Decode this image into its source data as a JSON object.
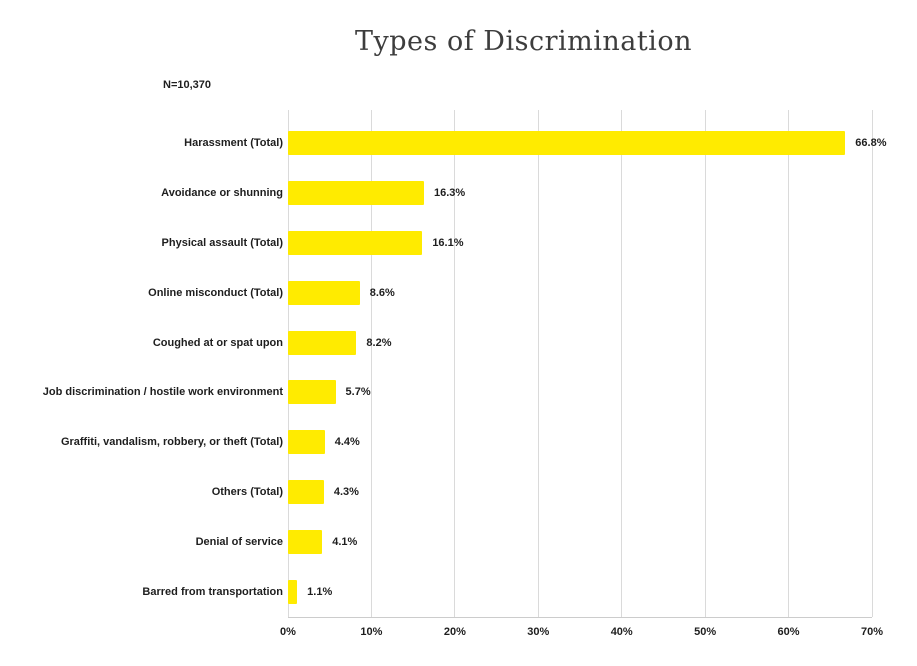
{
  "chart_data": {
    "type": "bar",
    "orientation": "horizontal",
    "title": "Types of Discrimination",
    "sample_size_label": "N=10,370",
    "categories": [
      "Harassment (Total)",
      "Avoidance or shunning",
      "Physical assault (Total)",
      "Online misconduct (Total)",
      "Coughed at or spat upon",
      "Job discrimination / hostile work environment",
      "Graffiti, vandalism, robbery, or theft (Total)",
      "Others (Total)",
      "Denial of service",
      "Barred from transportation"
    ],
    "values": [
      66.8,
      16.3,
      16.1,
      8.6,
      8.2,
      5.7,
      4.4,
      4.3,
      4.1,
      1.1
    ],
    "value_labels": [
      "66.8%",
      "16.3%",
      "16.1%",
      "8.6%",
      "8.2%",
      "5.7%",
      "4.4%",
      "4.3%",
      "4.1%",
      "1.1%"
    ],
    "x_tick_labels": [
      "0%",
      "10%",
      "20%",
      "30%",
      "40%",
      "50%",
      "60%",
      "70%"
    ],
    "xlim": [
      0,
      70
    ],
    "xlabel": "",
    "ylabel": "",
    "grid": true,
    "legend": false,
    "colors": {
      "bar": "#FFEB00",
      "gridline": "#DADADA",
      "axis_line": "#CCCCCC",
      "label_text": "#1E1E1E",
      "title_text": "#3D3D3D",
      "background": "#FFFFFF"
    }
  }
}
